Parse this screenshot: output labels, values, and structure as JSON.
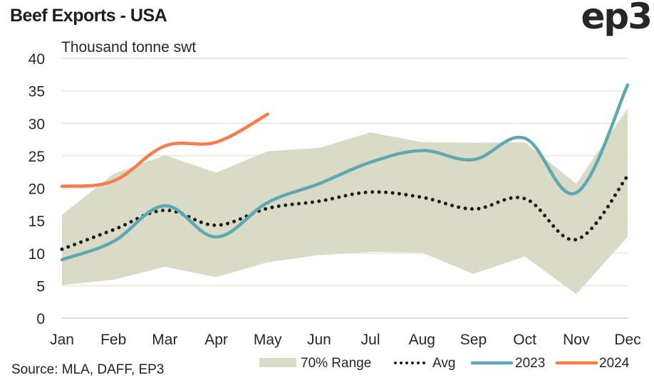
{
  "title": "Beef Exports - USA",
  "logo": "ep3",
  "source": "Source: MLA, DAFF, EP3",
  "colors": {
    "range": "#d9dbc6",
    "avg": "#1a1a1a",
    "y2023": "#5ea8b1",
    "y2024": "#f47e4b",
    "grid": "#ecebe0"
  },
  "chart_data": {
    "type": "line",
    "title": "Beef Exports - USA",
    "ylabel": "Thousand tonne swt",
    "xlabel": "",
    "ylim": [
      0,
      40
    ],
    "yticks": [
      0,
      5,
      10,
      15,
      20,
      25,
      30,
      35,
      40
    ],
    "grid": true,
    "legend_position": "bottom-right",
    "categories": [
      "Jan",
      "Feb",
      "Mar",
      "Apr",
      "May",
      "Jun",
      "Jul",
      "Aug",
      "Sep",
      "Oct",
      "Nov",
      "Dec"
    ],
    "range": {
      "name": "70% Range",
      "lower": [
        5.1,
        5.9,
        7.9,
        6.3,
        8.6,
        9.7,
        10.2,
        10.1,
        6.8,
        9.5,
        3.7,
        12.5
      ],
      "upper": [
        15.9,
        22.2,
        25.1,
        22.4,
        25.7,
        26.2,
        28.6,
        27.1,
        27.0,
        27.1,
        20.7,
        32.3
      ]
    },
    "series": [
      {
        "name": "Avg",
        "style": "dotted",
        "values": [
          10.6,
          13.6,
          16.6,
          14.3,
          16.9,
          18.0,
          19.4,
          18.6,
          16.8,
          18.4,
          12.1,
          21.9
        ]
      },
      {
        "name": "2023",
        "style": "solid",
        "values": [
          9.0,
          11.8,
          17.3,
          12.5,
          17.8,
          20.7,
          24.0,
          25.8,
          24.4,
          27.7,
          19.3,
          35.9
        ]
      },
      {
        "name": "2024",
        "style": "solid",
        "values": [
          20.3,
          21.1,
          26.5,
          27.1,
          31.4
        ]
      }
    ]
  }
}
